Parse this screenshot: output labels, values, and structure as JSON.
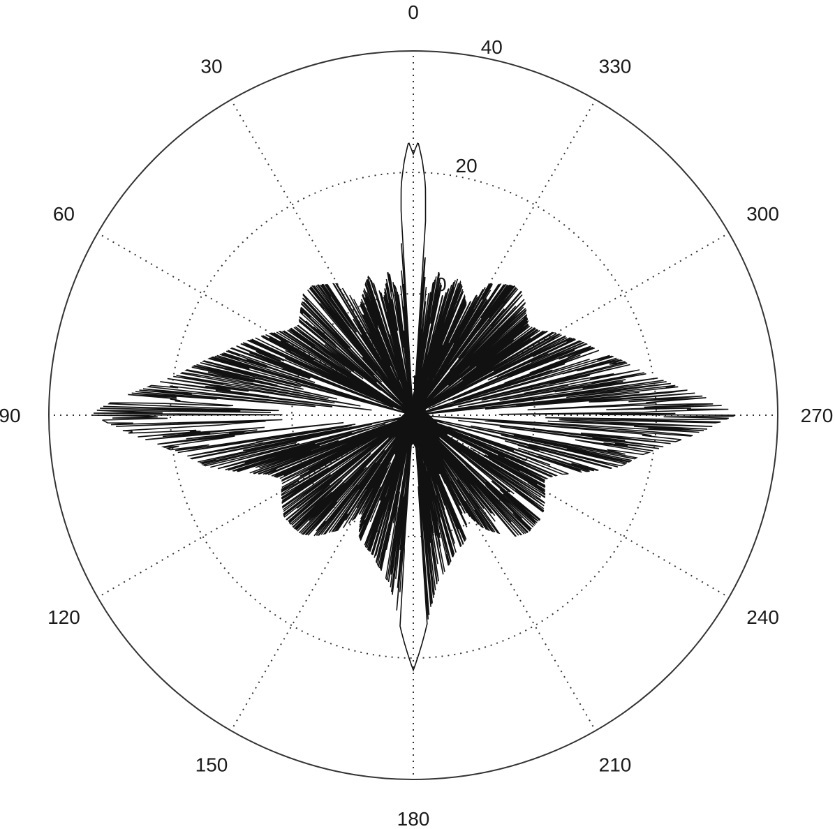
{
  "chart_data": {
    "type": "polar-line",
    "title": "",
    "angular_unit": "degrees",
    "angle_zero": "top",
    "angle_direction": "counter-clockwise",
    "angular_ticks": [
      0,
      30,
      60,
      90,
      120,
      150,
      180,
      210,
      240,
      270,
      300,
      330
    ],
    "angular_tick_labels": [
      "0",
      "30",
      "60",
      "90",
      "120",
      "150",
      "180",
      "210",
      "240",
      "270",
      "300",
      "330"
    ],
    "radial_ticks": [
      0,
      20,
      40
    ],
    "radial_tick_labels": [
      "0",
      "20",
      "40"
    ],
    "radial_range": [
      -20,
      40
    ],
    "grid": true,
    "series": [
      {
        "keypoints": [
          [
            0,
            23
          ],
          [
            1,
            25
          ],
          [
            2,
            22
          ],
          [
            3,
            18
          ],
          [
            4,
            8
          ],
          [
            5,
            2
          ],
          [
            7,
            0
          ],
          [
            10,
            4
          ],
          [
            14,
            0
          ],
          [
            18,
            4
          ],
          [
            22,
            2
          ],
          [
            26,
            0
          ],
          [
            30,
            5
          ],
          [
            34,
            6
          ],
          [
            38,
            7
          ],
          [
            42,
            7
          ],
          [
            45,
            6
          ],
          [
            48,
            5
          ],
          [
            52,
            4
          ],
          [
            56,
            5
          ],
          [
            60,
            7
          ],
          [
            64,
            9
          ],
          [
            68,
            11
          ],
          [
            72,
            13
          ],
          [
            76,
            16
          ],
          [
            80,
            19
          ],
          [
            84,
            24
          ],
          [
            87,
            29
          ],
          [
            89,
            32
          ],
          [
            90,
            33
          ],
          [
            91,
            31
          ],
          [
            93,
            28
          ],
          [
            96,
            23
          ],
          [
            100,
            18
          ],
          [
            104,
            15
          ],
          [
            108,
            10
          ],
          [
            112,
            6
          ],
          [
            116,
            4
          ],
          [
            120,
            5
          ],
          [
            124,
            6
          ],
          [
            128,
            7
          ],
          [
            132,
            7
          ],
          [
            136,
            7
          ],
          [
            140,
            6
          ],
          [
            144,
            4
          ],
          [
            148,
            2
          ],
          [
            152,
            -2
          ],
          [
            156,
            2
          ],
          [
            160,
            3
          ],
          [
            164,
            4
          ],
          [
            168,
            6
          ],
          [
            172,
            8
          ],
          [
            175,
            12
          ],
          [
            177,
            16
          ],
          [
            179,
            20
          ],
          [
            180,
            22
          ],
          [
            181,
            20
          ],
          [
            183,
            16
          ],
          [
            185,
            12
          ],
          [
            188,
            8
          ],
          [
            192,
            6
          ],
          [
            196,
            4
          ],
          [
            200,
            3
          ],
          [
            204,
            2
          ],
          [
            208,
            -2
          ],
          [
            212,
            2
          ],
          [
            216,
            4
          ],
          [
            220,
            6
          ],
          [
            224,
            7
          ],
          [
            228,
            7
          ],
          [
            232,
            7
          ],
          [
            236,
            6
          ],
          [
            240,
            5
          ],
          [
            244,
            4
          ],
          [
            248,
            6
          ],
          [
            252,
            10
          ],
          [
            256,
            15
          ],
          [
            260,
            18
          ],
          [
            264,
            23
          ],
          [
            267,
            28
          ],
          [
            269,
            31
          ],
          [
            270,
            33
          ],
          [
            271,
            32
          ],
          [
            273,
            29
          ],
          [
            276,
            24
          ],
          [
            280,
            19
          ],
          [
            284,
            16
          ],
          [
            288,
            13
          ],
          [
            292,
            11
          ],
          [
            296,
            9
          ],
          [
            300,
            7
          ],
          [
            304,
            5
          ],
          [
            308,
            4
          ],
          [
            312,
            5
          ],
          [
            315,
            6
          ],
          [
            318,
            7
          ],
          [
            322,
            7
          ],
          [
            326,
            6
          ],
          [
            330,
            5
          ],
          [
            334,
            0
          ],
          [
            338,
            2
          ],
          [
            342,
            4
          ],
          [
            346,
            0
          ],
          [
            350,
            4
          ],
          [
            353,
            0
          ],
          [
            355,
            2
          ],
          [
            356,
            8
          ],
          [
            357,
            18
          ],
          [
            358,
            22
          ],
          [
            359,
            25
          ],
          [
            360,
            23
          ]
        ]
      }
    ]
  }
}
